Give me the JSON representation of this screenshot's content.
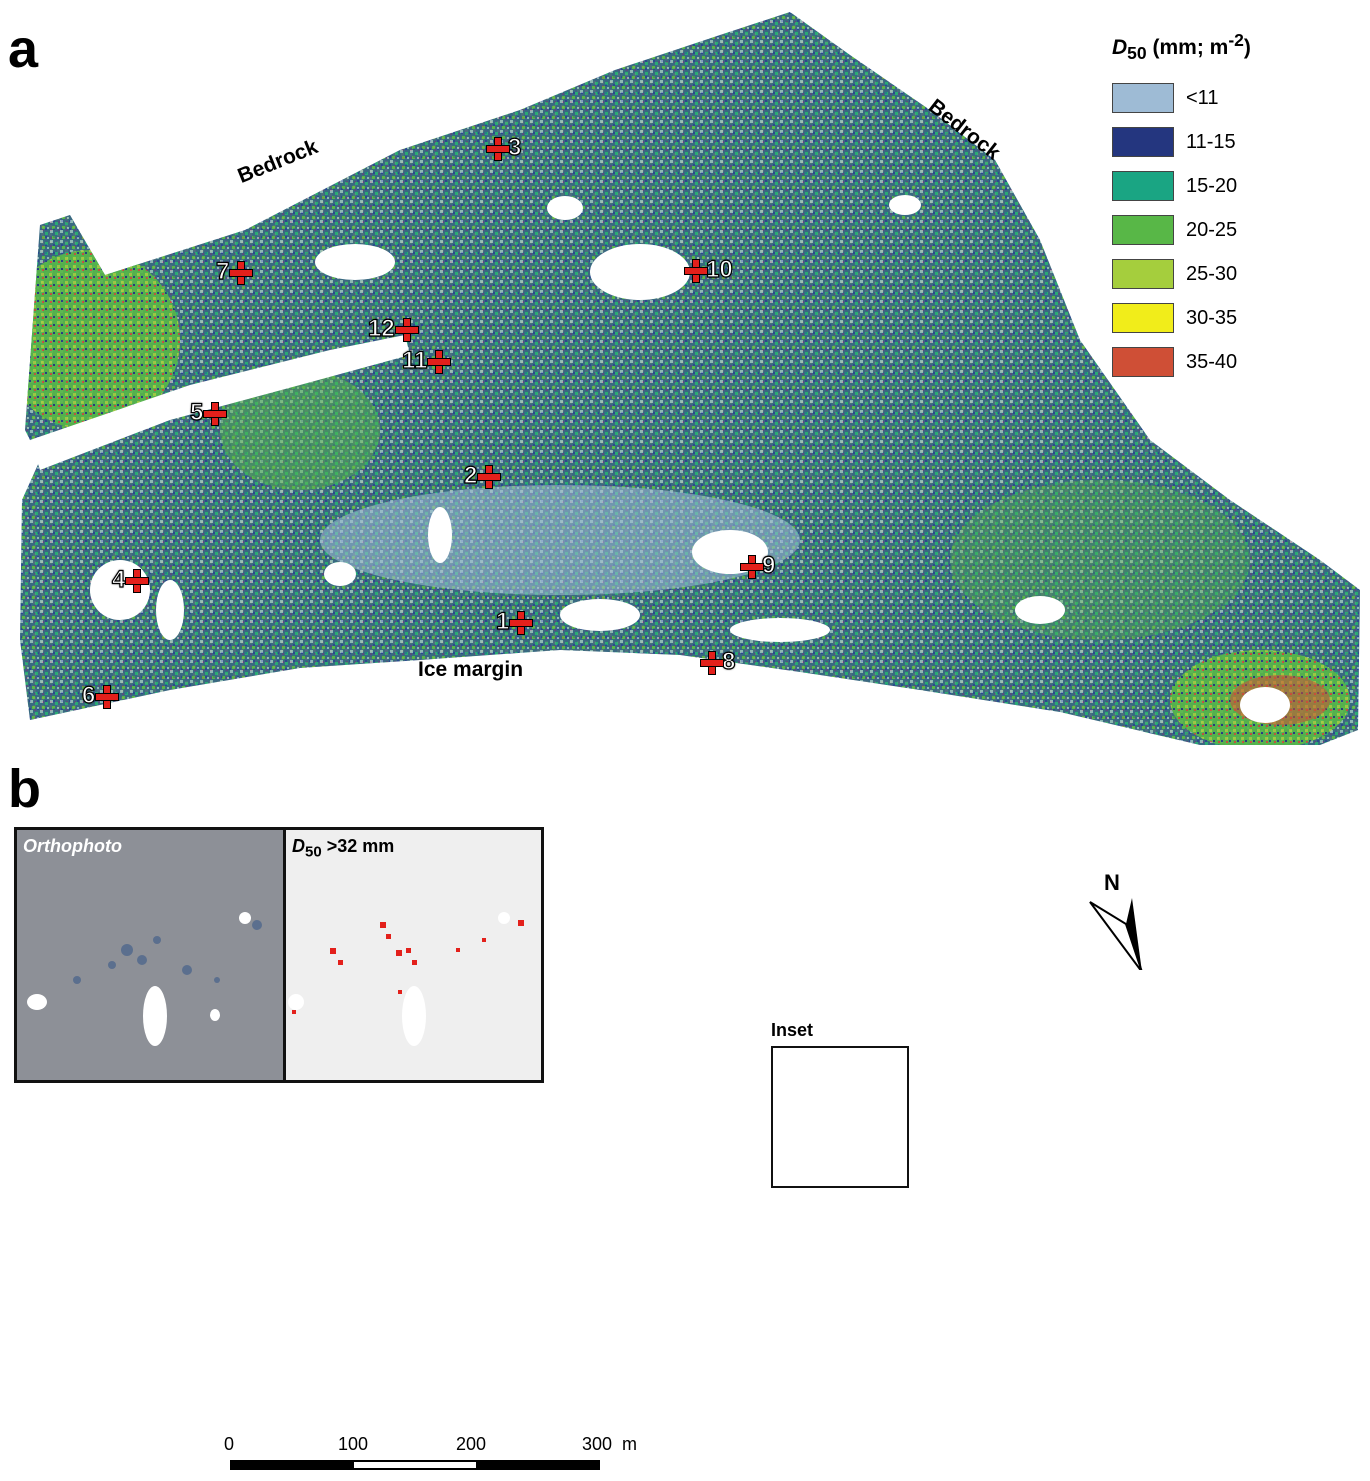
{
  "panels": {
    "a": {
      "letter": "a",
      "legend": {
        "title_symbol": "D",
        "title_subscript": "50",
        "title_rest": " (mm; m",
        "title_superscript": "-2",
        "title_close": ")",
        "classes": [
          {
            "label": "<11",
            "color": "#9ebbd5"
          },
          {
            "label": "11-15",
            "color": "#24367f"
          },
          {
            "label": "15-20",
            "color": "#1aa583"
          },
          {
            "label": "20-25",
            "color": "#58b747"
          },
          {
            "label": "25-30",
            "color": "#a5ce3d"
          },
          {
            "label": "30-35",
            "color": "#f1ed1a"
          },
          {
            "label": "35-40",
            "color": "#cf4f36"
          }
        ]
      },
      "labels": {
        "bedrock_left": "Bedrock",
        "bedrock_right": "Bedrock",
        "ice_margin": "Ice margin"
      },
      "sites": [
        "1",
        "2",
        "3",
        "4",
        "5",
        "6",
        "7",
        "8",
        "9",
        "10",
        "11",
        "12"
      ]
    },
    "b": {
      "letter": "b",
      "inset_ortho_caption": "Orthophoto",
      "inset_d50_symbol": "D",
      "inset_d50_subscript": "50",
      "inset_d50_rest": " >32 mm",
      "inset_box_label": "Inset",
      "north_label": "N",
      "scale_bar": {
        "ticks": [
          "0",
          "100",
          "200",
          "300"
        ],
        "unit": "m"
      },
      "highlight_color": "#e3201b"
    }
  }
}
